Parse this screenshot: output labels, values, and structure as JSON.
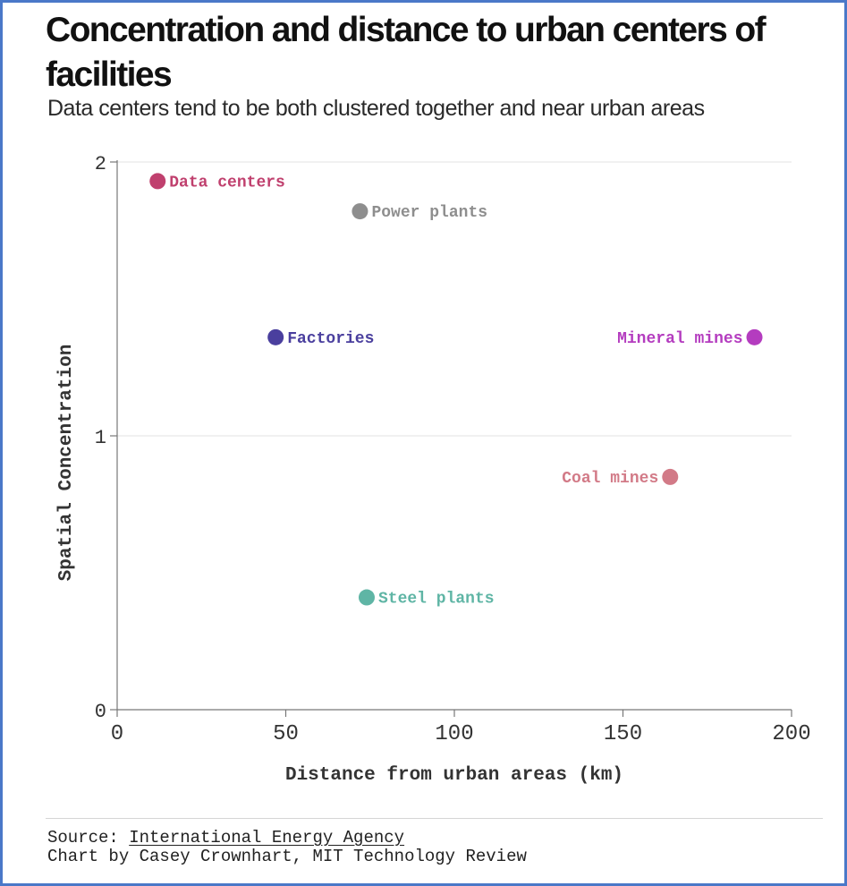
{
  "header": {
    "title": "Concentration and distance to urban centers of facilities",
    "subtitle": "Data centers tend to be both clustered together and near urban areas"
  },
  "chart_data": {
    "type": "scatter",
    "xlabel": "Distance from urban areas (km)",
    "ylabel": "Spatial Concentration",
    "xlim": [
      0,
      200
    ],
    "ylim": [
      0,
      2
    ],
    "xticks": [
      "0",
      "50",
      "100",
      "150",
      "200"
    ],
    "yticks": [
      "0",
      "1",
      "2"
    ],
    "grid": "horizontal",
    "legend": "none (points labeled directly)",
    "points": [
      {
        "label": "Data centers",
        "x": 12,
        "y": 1.93,
        "color": "#c0406e",
        "label_side": "right"
      },
      {
        "label": "Power plants",
        "x": 72,
        "y": 1.82,
        "color": "#8e8e8e",
        "label_side": "right"
      },
      {
        "label": "Factories",
        "x": 47,
        "y": 1.36,
        "color": "#4a3f9e",
        "label_side": "right"
      },
      {
        "label": "Mineral mines",
        "x": 189,
        "y": 1.36,
        "color": "#b43cbf",
        "label_side": "left"
      },
      {
        "label": "Coal mines",
        "x": 164,
        "y": 0.85,
        "color": "#d27a87",
        "label_side": "left"
      },
      {
        "label": "Steel plants",
        "x": 74,
        "y": 0.41,
        "color": "#5fb5a5",
        "label_side": "right"
      }
    ]
  },
  "footer": {
    "source_prefix": "Source: ",
    "source_link": "International Energy Agency",
    "credit": "Chart by Casey Crownhart, MIT Technology Review"
  }
}
